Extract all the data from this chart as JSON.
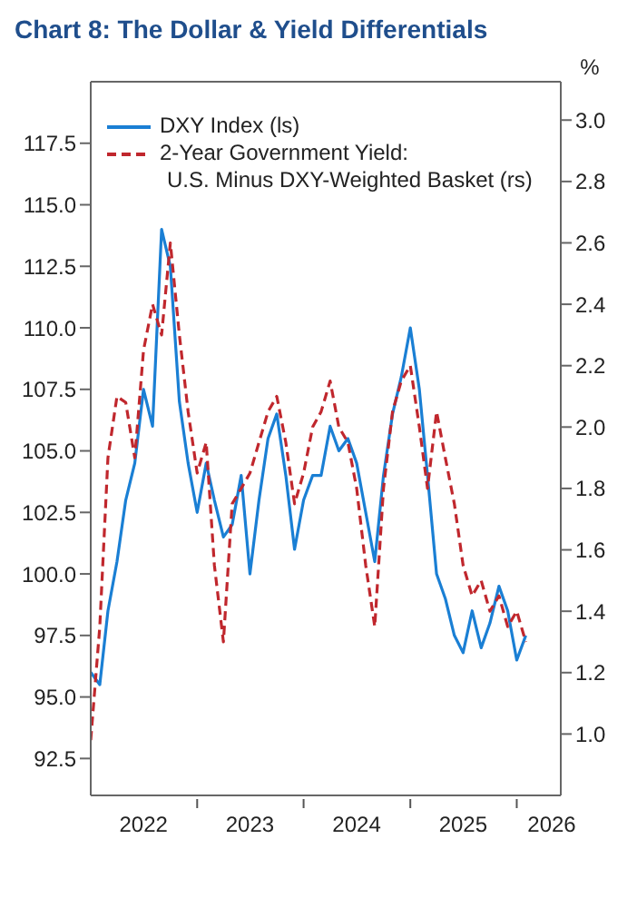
{
  "chart_data": {
    "type": "line",
    "title": "Chart 8: The Dollar & Yield Differentials",
    "y2label": "%",
    "x": [
      "2022-01",
      "2022-02",
      "2022-03",
      "2022-04",
      "2022-05",
      "2022-06",
      "2022-07",
      "2022-08",
      "2022-09",
      "2022-10",
      "2022-11",
      "2022-12",
      "2023-01",
      "2023-02",
      "2023-03",
      "2023-04",
      "2023-05",
      "2023-06",
      "2023-07",
      "2023-08",
      "2023-09",
      "2023-10",
      "2023-11",
      "2023-12",
      "2024-01",
      "2024-02",
      "2024-03",
      "2024-04",
      "2024-05",
      "2024-06",
      "2024-07",
      "2024-08",
      "2024-09",
      "2024-10",
      "2024-11",
      "2024-12",
      "2025-01",
      "2025-02",
      "2025-03",
      "2025-04",
      "2025-05",
      "2025-06",
      "2025-07",
      "2025-08",
      "2025-09",
      "2025-10",
      "2025-11",
      "2025-12",
      "2026-01",
      "2026-02"
    ],
    "series": [
      {
        "name": "DXY Index (ls)",
        "color": "#1a7fd4",
        "line_style": "solid",
        "values": [
          96.0,
          95.5,
          98.5,
          100.5,
          103.0,
          104.5,
          107.5,
          106.0,
          114.0,
          112.5,
          107.0,
          104.5,
          102.5,
          104.5,
          103.0,
          101.5,
          102.0,
          104.0,
          100.0,
          103.0,
          105.5,
          106.5,
          104.0,
          101.0,
          103.0,
          104.0,
          104.0,
          106.0,
          105.0,
          105.5,
          104.5,
          102.5,
          100.5,
          104.0,
          106.5,
          108.0,
          110.0,
          107.5,
          104.0,
          100.0,
          99.0,
          97.5,
          96.8,
          98.5,
          97.0,
          98.0,
          99.5,
          98.5,
          96.5,
          97.5
        ]
      },
      {
        "name": "2-Year Government Yield: U.S. Minus DXY-Weighted Basket (rs)",
        "color": "#c0272d",
        "line_style": "dashed",
        "axis": "y2",
        "values": [
          0.98,
          1.35,
          1.9,
          2.1,
          2.08,
          1.9,
          2.25,
          2.4,
          2.3,
          2.6,
          2.3,
          2.05,
          1.85,
          1.95,
          1.55,
          1.3,
          1.75,
          1.8,
          1.85,
          1.95,
          2.05,
          2.1,
          1.95,
          1.75,
          1.85,
          2.0,
          2.05,
          2.15,
          2.0,
          1.95,
          1.8,
          1.55,
          1.35,
          1.8,
          2.05,
          2.15,
          2.2,
          2.0,
          1.8,
          2.05,
          1.9,
          1.75,
          1.55,
          1.45,
          1.5,
          1.4,
          1.45,
          1.35,
          1.4,
          1.3
        ]
      }
    ],
    "xlim": [
      "2022-01",
      "2026-06"
    ],
    "xticks": [
      {
        "value": "2022-07",
        "label": "2022"
      },
      {
        "value": "2023",
        "label": null
      },
      {
        "value": "2023-07",
        "label": "2023"
      },
      {
        "value": "2024",
        "label": null
      },
      {
        "value": "2024-07",
        "label": "2024"
      },
      {
        "value": "2025",
        "label": null
      },
      {
        "value": "2025-07",
        "label": "2025"
      },
      {
        "value": "2026",
        "label": null
      },
      {
        "value": "2026-05",
        "label": "2026"
      }
    ],
    "ylim": [
      91,
      120
    ],
    "yticks": [
      {
        "value": 92.5,
        "label": "92.5"
      },
      {
        "value": 95,
        "label": "95.0"
      },
      {
        "value": 97.5,
        "label": "97.5"
      },
      {
        "value": 100,
        "label": "100.0"
      },
      {
        "value": 102.5,
        "label": "102.5"
      },
      {
        "value": 105,
        "label": "105.0"
      },
      {
        "value": 107.5,
        "label": "107.5"
      },
      {
        "value": 110,
        "label": "110.0"
      },
      {
        "value": 112.5,
        "label": "112.5"
      },
      {
        "value": 115,
        "label": "115.0"
      },
      {
        "value": 117.5,
        "label": "117.5"
      }
    ],
    "y2lim": [
      0.8,
      3.125
    ],
    "y2ticks": [
      {
        "value": 1,
        "label": "1.0"
      },
      {
        "value": 1.2,
        "label": "1.2"
      },
      {
        "value": 1.4,
        "label": "1.4"
      },
      {
        "value": 1.6,
        "label": "1.6"
      },
      {
        "value": 1.8,
        "label": "1.8"
      },
      {
        "value": 2,
        "label": "2.0"
      },
      {
        "value": 2.2,
        "label": "2.2"
      },
      {
        "value": 2.4,
        "label": "2.4"
      },
      {
        "value": 2.6,
        "label": "2.6"
      },
      {
        "value": 2.8,
        "label": "2.8"
      },
      {
        "value": 3,
        "label": "3.0"
      }
    ],
    "grid": false,
    "legend": "top left",
    "marker": "none"
  }
}
